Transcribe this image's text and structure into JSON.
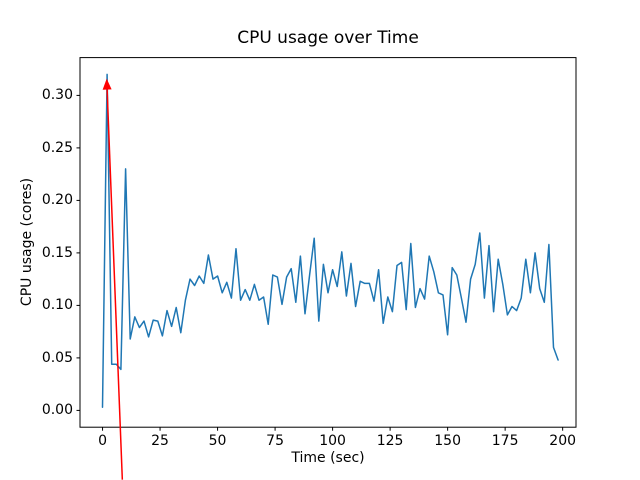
{
  "figure": {
    "background": "#ffffff"
  },
  "chart_data": {
    "type": "line",
    "title": "CPU usage over Time",
    "xlabel": "Time (sec)",
    "ylabel": "CPU usage (cores)",
    "grid": false,
    "legend": "none",
    "xlim": [
      -9.8,
      205.8
    ],
    "ylim": [
      -0.016,
      0.336
    ],
    "x_ticks": [
      0,
      25,
      50,
      75,
      100,
      125,
      150,
      175,
      200
    ],
    "x_tick_labels": [
      "0",
      "25",
      "50",
      "75",
      "100",
      "125",
      "150",
      "175",
      "200"
    ],
    "y_ticks": [
      0.0,
      0.05,
      0.1,
      0.15,
      0.2,
      0.25,
      0.3
    ],
    "y_tick_labels": [
      "0.00",
      "0.05",
      "0.10",
      "0.15",
      "0.20",
      "0.25",
      "0.30"
    ],
    "series": [
      {
        "name": "cpu-usage",
        "color": "#1f77b4",
        "line_width": 1.5,
        "x": [
          0,
          2,
          4,
          6,
          8,
          10,
          12,
          14,
          16,
          18,
          20,
          22,
          24,
          26,
          28,
          30,
          32,
          34,
          36,
          38,
          40,
          42,
          44,
          46,
          48,
          50,
          52,
          54,
          56,
          58,
          60,
          62,
          64,
          66,
          68,
          70,
          72,
          74,
          76,
          78,
          80,
          82,
          84,
          86,
          88,
          90,
          92,
          94,
          96,
          98,
          100,
          102,
          104,
          106,
          108,
          110,
          112,
          114,
          116,
          118,
          120,
          122,
          124,
          126,
          128,
          130,
          132,
          134,
          136,
          138,
          140,
          142,
          144,
          146,
          148,
          150,
          152,
          154,
          156,
          158,
          160,
          162,
          164,
          166,
          168,
          170,
          172,
          174,
          176,
          178,
          180,
          182,
          184,
          186,
          188,
          190,
          192,
          194,
          196,
          198
        ],
        "y": [
          0.003,
          0.32,
          0.044,
          0.044,
          0.039,
          0.23,
          0.068,
          0.089,
          0.079,
          0.085,
          0.07,
          0.086,
          0.085,
          0.071,
          0.095,
          0.08,
          0.098,
          0.074,
          0.105,
          0.125,
          0.119,
          0.128,
          0.121,
          0.148,
          0.125,
          0.128,
          0.112,
          0.122,
          0.107,
          0.154,
          0.105,
          0.115,
          0.105,
          0.12,
          0.105,
          0.108,
          0.082,
          0.129,
          0.127,
          0.101,
          0.127,
          0.135,
          0.103,
          0.147,
          0.092,
          0.129,
          0.164,
          0.085,
          0.139,
          0.112,
          0.134,
          0.118,
          0.151,
          0.109,
          0.14,
          0.099,
          0.123,
          0.121,
          0.121,
          0.104,
          0.134,
          0.083,
          0.108,
          0.094,
          0.138,
          0.141,
          0.096,
          0.159,
          0.098,
          0.116,
          0.106,
          0.147,
          0.132,
          0.112,
          0.11,
          0.072,
          0.136,
          0.129,
          0.107,
          0.084,
          0.125,
          0.139,
          0.169,
          0.107,
          0.157,
          0.094,
          0.144,
          0.12,
          0.091,
          0.099,
          0.095,
          0.107,
          0.144,
          0.112,
          0.15,
          0.116,
          0.103,
          0.158,
          0.06,
          0.048
        ]
      }
    ],
    "annotation": {
      "type": "arrow",
      "color": "#ff0000",
      "line_width": 1.5,
      "tip": [
        1.8,
        0.316
      ],
      "tail": [
        8.6,
        -0.066
      ]
    }
  }
}
